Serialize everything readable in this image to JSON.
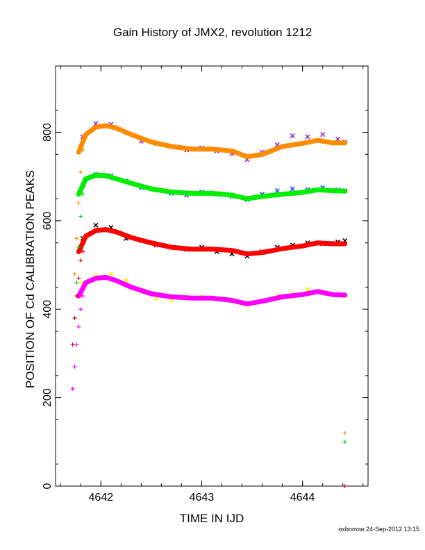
{
  "chart_data": {
    "type": "scatter",
    "title": "Gain History of JMX2, revolution 1212",
    "xlabel": "TIME IN IJD",
    "ylabel": "POSITION OF Cd CALIBRATION PEAKS",
    "xlim": [
      4641.55,
      4644.65
    ],
    "ylim": [
      0,
      950
    ],
    "x_ticks": [
      4642,
      4643,
      4644
    ],
    "x_tick_labels": [
      "4642",
      "4643",
      "4644"
    ],
    "y_ticks": [
      0,
      200,
      400,
      600,
      800
    ],
    "y_tick_labels": [
      "0",
      "200",
      "400",
      "600",
      "800"
    ],
    "grid": false,
    "legend": "none",
    "series": [
      {
        "marker": "x",
        "color": "#8a2be2",
        "x": [
          4641.82,
          4641.95,
          4642.1,
          4642.25,
          4642.4,
          4642.55,
          4642.7,
          4642.85,
          4643.0,
          4643.15,
          4643.3,
          4643.45,
          4643.6,
          4643.75,
          4643.9,
          4644.05,
          4644.2,
          4644.35,
          4644.42
        ],
        "y": [
          790,
          820,
          818,
          800,
          780,
          775,
          768,
          760,
          765,
          758,
          752,
          738,
          755,
          772,
          792,
          790,
          795,
          785,
          778
        ]
      },
      {
        "marker": "line",
        "color": "#ff8c00",
        "x": [
          4641.78,
          4641.85,
          4641.95,
          4642.05,
          4642.15,
          4642.3,
          4642.5,
          4642.7,
          4642.9,
          4643.1,
          4643.3,
          4643.45,
          4643.6,
          4643.8,
          4644.0,
          4644.15,
          4644.3,
          4644.42
        ],
        "y": [
          755,
          795,
          812,
          815,
          810,
          795,
          778,
          768,
          762,
          762,
          758,
          745,
          750,
          768,
          775,
          782,
          776,
          776
        ]
      },
      {
        "marker": "x",
        "color": "#1f3fff",
        "x": [
          4641.82,
          4641.95,
          4642.1,
          4642.25,
          4642.4,
          4642.55,
          4642.7,
          4642.85,
          4643.0,
          4643.15,
          4643.3,
          4643.45,
          4643.6,
          4643.75,
          4643.9,
          4644.05,
          4644.2,
          4644.35,
          4644.42
        ],
        "y": [
          680,
          705,
          702,
          690,
          675,
          670,
          662,
          658,
          665,
          660,
          655,
          648,
          660,
          668,
          672,
          670,
          675,
          670,
          668
        ]
      },
      {
        "marker": "line",
        "color": "#00ee00",
        "x": [
          4641.78,
          4641.85,
          4641.95,
          4642.05,
          4642.15,
          4642.3,
          4642.5,
          4642.7,
          4642.9,
          4643.1,
          4643.3,
          4643.45,
          4643.6,
          4643.8,
          4644.0,
          4644.15,
          4644.3,
          4644.42
        ],
        "y": [
          660,
          695,
          703,
          702,
          695,
          685,
          672,
          665,
          662,
          662,
          658,
          650,
          655,
          660,
          664,
          670,
          668,
          667
        ]
      },
      {
        "marker": "x",
        "color": "#000000",
        "x": [
          4641.82,
          4641.95,
          4642.1,
          4642.25,
          4642.4,
          4642.55,
          4642.7,
          4642.85,
          4643.0,
          4643.15,
          4643.3,
          4643.45,
          4643.6,
          4643.75,
          4643.9,
          4644.05,
          4644.2,
          4644.35,
          4644.42
        ],
        "y": [
          560,
          590,
          585,
          560,
          555,
          545,
          540,
          535,
          540,
          530,
          525,
          520,
          530,
          540,
          545,
          550,
          548,
          552,
          555
        ]
      },
      {
        "marker": "line",
        "color": "#ff0000",
        "x": [
          4641.78,
          4641.85,
          4641.95,
          4642.05,
          4642.15,
          4642.3,
          4642.5,
          4642.7,
          4642.9,
          4643.1,
          4643.3,
          4643.45,
          4643.6,
          4643.8,
          4644.0,
          4644.15,
          4644.3,
          4644.42
        ],
        "y": [
          530,
          565,
          578,
          580,
          575,
          562,
          550,
          540,
          536,
          536,
          533,
          525,
          528,
          537,
          543,
          550,
          548,
          548
        ]
      },
      {
        "marker": "x",
        "color": "#ffee00",
        "x": [
          4641.82,
          4641.95,
          4642.1,
          4642.25,
          4642.4,
          4642.55,
          4642.7,
          4642.85,
          4643.0,
          4643.15,
          4643.3,
          4643.45,
          4643.6,
          4643.75,
          4643.9,
          4644.05,
          4644.2,
          4644.35,
          4644.42
        ],
        "y": [
          460,
          475,
          480,
          465,
          440,
          425,
          420,
          425,
          428,
          425,
          420,
          410,
          420,
          430,
          435,
          445,
          440,
          432,
          430
        ]
      },
      {
        "marker": "line",
        "color": "#ff00ff",
        "x": [
          4641.78,
          4641.85,
          4641.95,
          4642.05,
          4642.15,
          4642.3,
          4642.5,
          4642.7,
          4642.9,
          4643.1,
          4643.3,
          4643.45,
          4643.6,
          4643.8,
          4644.0,
          4644.15,
          4644.3,
          4644.42
        ],
        "y": [
          430,
          460,
          470,
          472,
          465,
          450,
          435,
          428,
          425,
          425,
          420,
          412,
          418,
          428,
          433,
          440,
          433,
          432
        ]
      },
      {
        "marker": "+",
        "color": "#ff8c00",
        "x": [
          4641.74,
          4641.76,
          4641.78,
          4641.8,
          4641.82,
          4641.85,
          4644.42
        ],
        "y": [
          480,
          560,
          640,
          710,
          760,
          790,
          120
        ]
      },
      {
        "marker": "+",
        "color": "#00cc00",
        "x": [
          4641.76,
          4641.78,
          4641.8,
          4641.82,
          4641.85,
          4644.42
        ],
        "y": [
          460,
          540,
          610,
          660,
          690,
          100
        ]
      },
      {
        "marker": "+",
        "color": "#cc0000",
        "x": [
          4641.72,
          4641.74,
          4641.76,
          4641.78,
          4641.8,
          4641.82,
          4644.42
        ],
        "y": [
          320,
          380,
          430,
          470,
          510,
          530,
          0
        ]
      },
      {
        "marker": "+",
        "color": "#ff00ff",
        "x": [
          4641.72,
          4641.74,
          4641.76,
          4641.78,
          4641.8,
          4641.82
        ],
        "y": [
          220,
          270,
          320,
          360,
          400,
          430
        ]
      }
    ]
  },
  "footer": {
    "credit": "oxborrow 24-Sep-2012 13:15"
  }
}
